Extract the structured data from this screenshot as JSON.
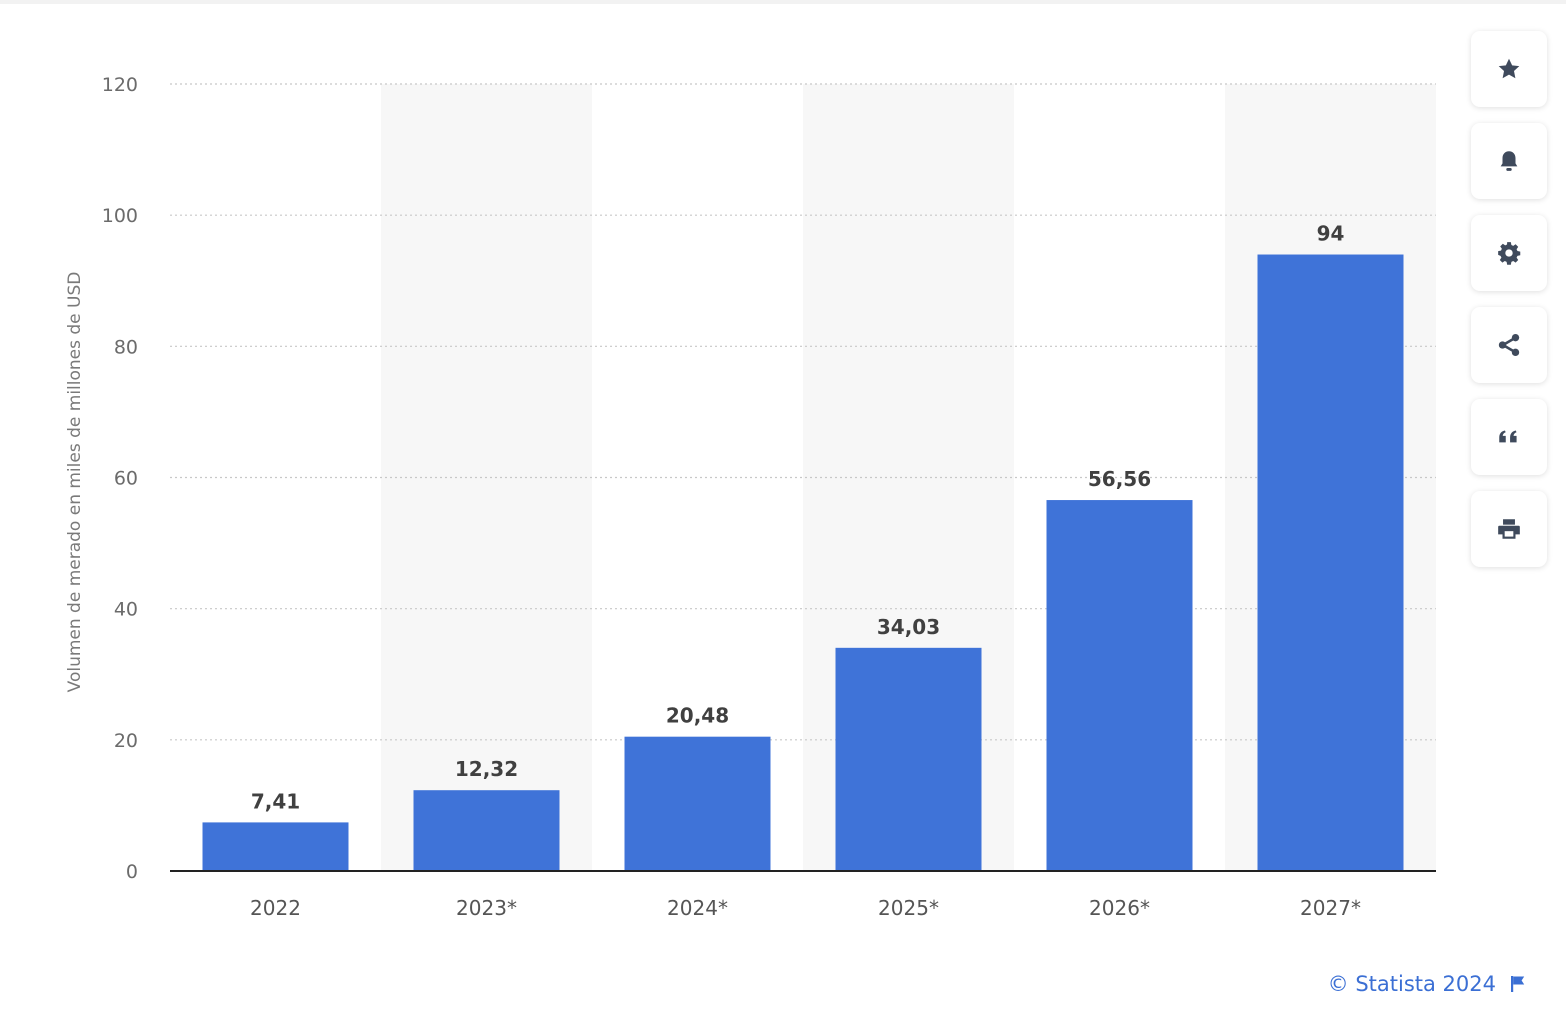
{
  "chart_data": {
    "type": "bar",
    "categories": [
      "2022",
      "2023*",
      "2024*",
      "2025*",
      "2026*",
      "2027*"
    ],
    "values": [
      7.41,
      12.32,
      20.48,
      34.03,
      56.56,
      94
    ],
    "value_labels": [
      "7,41",
      "12,32",
      "20,48",
      "34,03",
      "56,56",
      "94"
    ],
    "ylabel": "Volumen de merado en miles de millones de USD",
    "xlabel": "",
    "ylim": [
      0,
      120
    ],
    "yticks": [
      "0",
      "20",
      "40",
      "60",
      "80",
      "100",
      "120"
    ],
    "grid": true,
    "bar_color": "#3f73d8",
    "alternate_band_color": "#f7f7f7"
  },
  "toolbar": {
    "buttons": [
      {
        "name": "favorite-button",
        "icon": "star-icon"
      },
      {
        "name": "notification-button",
        "icon": "bell-icon"
      },
      {
        "name": "settings-button",
        "icon": "gear-icon"
      },
      {
        "name": "share-button",
        "icon": "share-icon"
      },
      {
        "name": "cite-button",
        "icon": "quote-icon"
      },
      {
        "name": "print-button",
        "icon": "printer-icon"
      }
    ],
    "icon_color": "#3f4a5c"
  },
  "credit": {
    "text": "© Statista 2024",
    "icon": "flag-icon",
    "color": "#3b6fd4"
  }
}
